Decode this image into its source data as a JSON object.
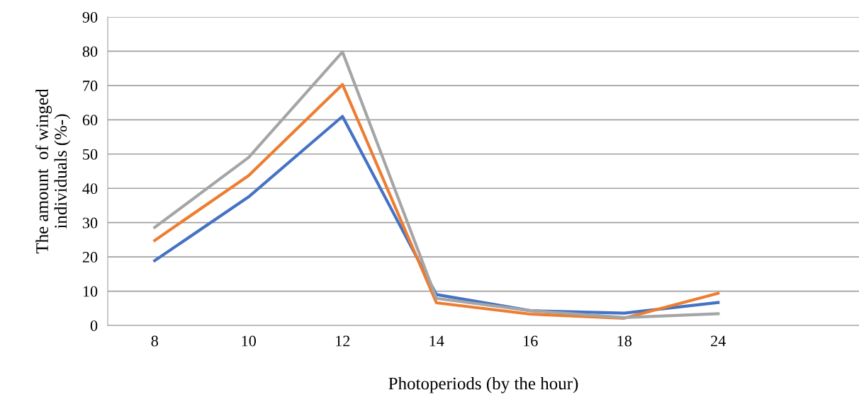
{
  "chart_data": {
    "type": "line",
    "xlabel": "Photoperiods (by the hour)",
    "ylabel": "The amount  of winged\nindividuals (%-)",
    "categories": [
      "8",
      "10",
      "12",
      "14",
      "16",
      "18",
      "24",
      null
    ],
    "series": [
      {
        "color": "#4472c4",
        "values": [
          18.9,
          37.5,
          61.0,
          9.0,
          4.3,
          3.6,
          6.7,
          null
        ]
      },
      {
        "color": "#ed7d31",
        "values": [
          24.8,
          43.7,
          70.3,
          6.6,
          3.3,
          2.1,
          9.4,
          null
        ]
      },
      {
        "color": "#a5a5a5",
        "values": [
          28.6,
          49.0,
          79.8,
          7.9,
          4.3,
          2.3,
          3.4,
          null
        ]
      }
    ],
    "ylim": [
      0,
      90
    ],
    "yticks": [
      0,
      10,
      20,
      30,
      40,
      50,
      60,
      70,
      80,
      90
    ],
    "grid": "y",
    "marker": "none",
    "line_style": "solid"
  }
}
